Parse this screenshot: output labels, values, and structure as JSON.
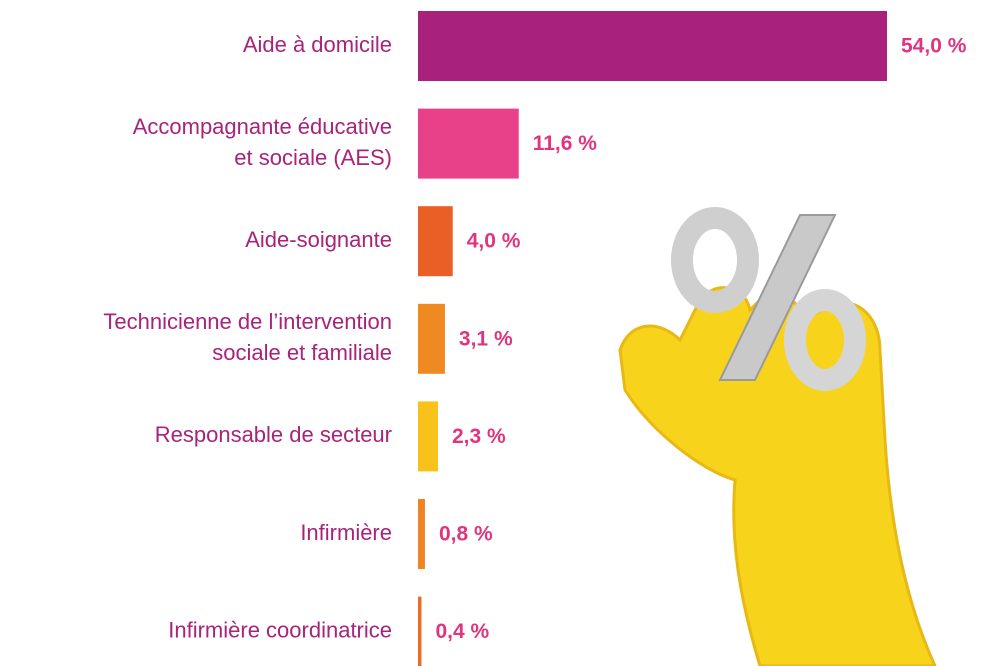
{
  "chart_data": {
    "type": "bar",
    "orientation": "horizontal",
    "categories": [
      [
        "Aide à domicile"
      ],
      [
        "Accompagnante éducative",
        "et sociale (AES)"
      ],
      [
        "Aide-soignante"
      ],
      [
        "Technicienne de l’intervention",
        "sociale et familiale"
      ],
      [
        "Responsable de secteur"
      ],
      [
        "Infirmière"
      ],
      [
        "Infirmière coordinatrice"
      ]
    ],
    "values": [
      54.0,
      11.6,
      4.0,
      3.1,
      2.3,
      0.8,
      0.4
    ],
    "value_labels": [
      "54,0 %",
      "11,6 %",
      "4,0 %",
      "3,1 %",
      "2,3 %",
      "0,8 %",
      "0,4 %"
    ],
    "colors": [
      "#a8217a",
      "#e8418a",
      "#e95f25",
      "#ef8a23",
      "#f8c21b",
      "#ee8424",
      "#ec6c22"
    ]
  }
}
